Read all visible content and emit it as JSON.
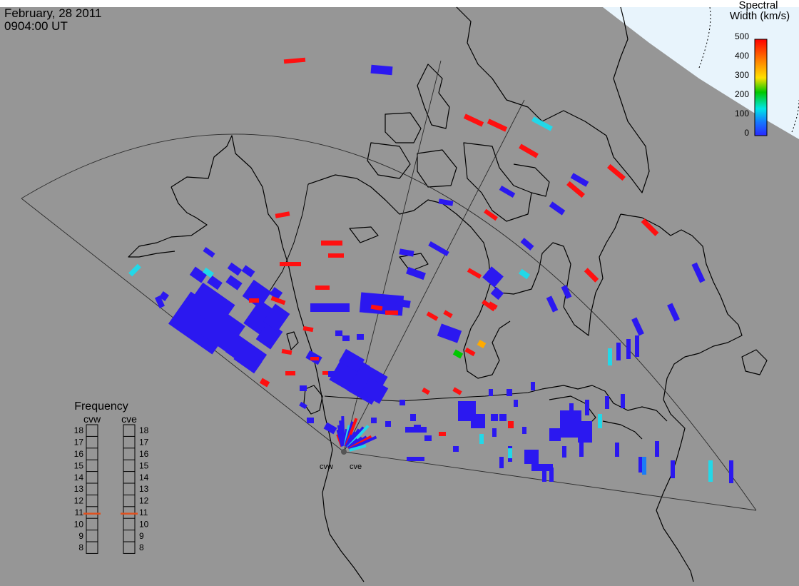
{
  "header": {
    "date": "February, 28 2011",
    "time": "0904:00 UT"
  },
  "colorbar": {
    "title_line1": "Spectral",
    "title_line2": "Width (km/s)",
    "ticks": [
      "500",
      "400",
      "300",
      "200",
      "100",
      "0"
    ],
    "colors": [
      "#ff0000",
      "#ff8000",
      "#ffe000",
      "#00c800",
      "#00e6e6",
      "#1478ff",
      "#2828ff"
    ]
  },
  "frequency_panel": {
    "title": "Frequency",
    "radars": [
      "cvw",
      "cve"
    ],
    "scale": [
      "18",
      "17",
      "16",
      "15",
      "14",
      "13",
      "12",
      "11",
      "10",
      "9",
      "8"
    ],
    "marker_level_mhz": 10.9,
    "marker_color": "#e0501e"
  },
  "radar_sites": {
    "labels": [
      "cvw",
      "cve"
    ]
  },
  "colors": {
    "background": "#969696",
    "daylight": "#e8f4fc",
    "red": "#ff1010",
    "blue": "#2b18f0",
    "cyan": "#22d8e8",
    "mid_blue": "#1a7cf6"
  }
}
